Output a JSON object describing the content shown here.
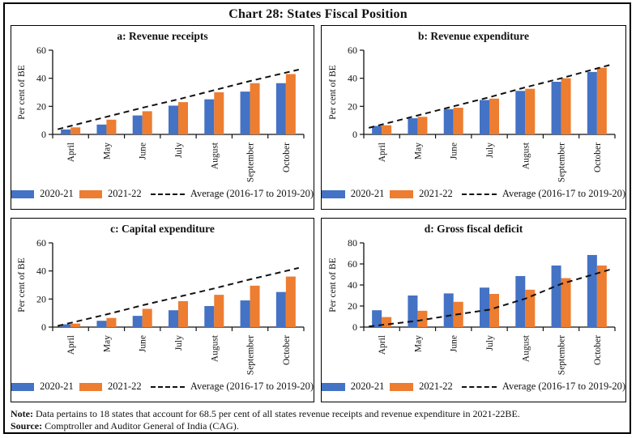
{
  "title": "Chart 28: States Fiscal Position",
  "colors": {
    "series1": "#4472C4",
    "series2": "#ED7D31",
    "average_line": "#111111",
    "axis": "#111111"
  },
  "legend": {
    "series1": "2020-21",
    "series2": "2021-22",
    "average": "Average (2016-17 to 2019-20)"
  },
  "chart_data": [
    {
      "type": "bar",
      "id": "a",
      "title": "a: Revenue receipts",
      "categories": [
        "April",
        "May",
        "June",
        "July",
        "August",
        "September",
        "October"
      ],
      "ylabel": "Per cent of BE",
      "ylim": [
        0,
        60
      ],
      "yticks": [
        0,
        20,
        40,
        60
      ],
      "series": [
        {
          "name": "2020-21",
          "values": [
            3.5,
            7,
            13.5,
            20.5,
            25,
            30.5,
            36.5
          ]
        },
        {
          "name": "2021-22",
          "values": [
            5,
            10.5,
            16.5,
            23,
            30,
            36.5,
            43
          ]
        }
      ],
      "average_line": {
        "name": "Average (2016-17 to 2019-20)",
        "values": [
          6,
          12.5,
          19,
          25,
          31.5,
          38,
          44
        ]
      },
      "legend_position": "bottom",
      "grid": false
    },
    {
      "type": "bar",
      "id": "b",
      "title": "b: Revenue expenditure",
      "categories": [
        "April",
        "May",
        "June",
        "July",
        "August",
        "September",
        "October"
      ],
      "ylabel": "Per cent of BE",
      "ylim": [
        0,
        60
      ],
      "yticks": [
        0,
        20,
        40,
        60
      ],
      "series": [
        {
          "name": "2020-21",
          "values": [
            6,
            11.5,
            18,
            24.5,
            31,
            37.5,
            44.5
          ]
        },
        {
          "name": "2021-22",
          "values": [
            6.5,
            12.5,
            19,
            25.5,
            32.5,
            40,
            47.5
          ]
        }
      ],
      "average_line": {
        "name": "Average (2016-17 to 2019-20)",
        "values": [
          7,
          13.5,
          20,
          26.5,
          33.5,
          40,
          47
        ]
      },
      "legend_position": "bottom",
      "grid": false
    },
    {
      "type": "bar",
      "id": "c",
      "title": "c: Capital expenditure",
      "categories": [
        "April",
        "May",
        "June",
        "July",
        "August",
        "September",
        "October"
      ],
      "ylabel": "Per cent of BE",
      "ylim": [
        0,
        60
      ],
      "yticks": [
        0,
        20,
        40,
        60
      ],
      "series": [
        {
          "name": "2020-21",
          "values": [
            2,
            4.5,
            8,
            12,
            15,
            19,
            25
          ]
        },
        {
          "name": "2021-22",
          "values": [
            2.5,
            6.5,
            13,
            18.5,
            23,
            29.5,
            36
          ]
        }
      ],
      "average_line": {
        "name": "Average (2016-17 to 2019-20)",
        "values": [
          3,
          9,
          15.5,
          21.5,
          27.5,
          34,
          40
        ]
      },
      "legend_position": "bottom",
      "grid": false
    },
    {
      "type": "bar",
      "id": "d",
      "title": "d: Gross fiscal deficit",
      "categories": [
        "April",
        "May",
        "June",
        "July",
        "August",
        "September",
        "October"
      ],
      "ylabel": "Per cent of BE",
      "ylim": [
        0,
        80
      ],
      "yticks": [
        0,
        20,
        40,
        60,
        80
      ],
      "series": [
        {
          "name": "2020-21",
          "values": [
            16,
            30,
            32,
            37.5,
            48.5,
            58.5,
            68.5
          ]
        },
        {
          "name": "2021-22",
          "values": [
            9.5,
            15.5,
            24,
            31.5,
            35.5,
            46.5,
            58.5
          ]
        }
      ],
      "average_line": {
        "name": "Average (2016-17 to 2019-20)",
        "values": [
          2,
          6,
          11.5,
          16.5,
          27,
          41,
          51
        ]
      },
      "legend_position": "bottom",
      "grid": false
    }
  ],
  "note": {
    "label": "Note:",
    "text": " Data pertains to 18 states that account for 68.5 per cent of all states revenue receipts and revenue expenditure in 2021-22BE."
  },
  "source": {
    "label": "Source:",
    "text": " Comptroller and Auditor General of India (CAG)."
  }
}
